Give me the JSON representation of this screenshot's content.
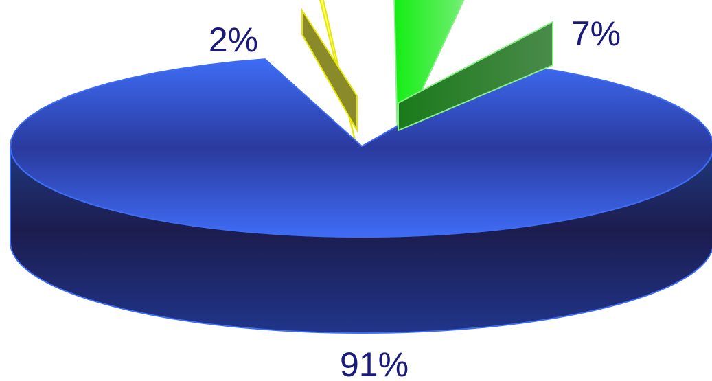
{
  "chart_data": {
    "type": "pie",
    "style": "3d-exploded",
    "title": "",
    "slices": [
      {
        "label": "2%",
        "value": 2,
        "color": "#ffff00",
        "exploded": true
      },
      {
        "label": "7%",
        "value": 7,
        "color": "#22dd22",
        "exploded": true
      },
      {
        "label": "91%",
        "value": 91,
        "color": "#3366ff",
        "exploded": false
      }
    ],
    "legend": "none"
  }
}
